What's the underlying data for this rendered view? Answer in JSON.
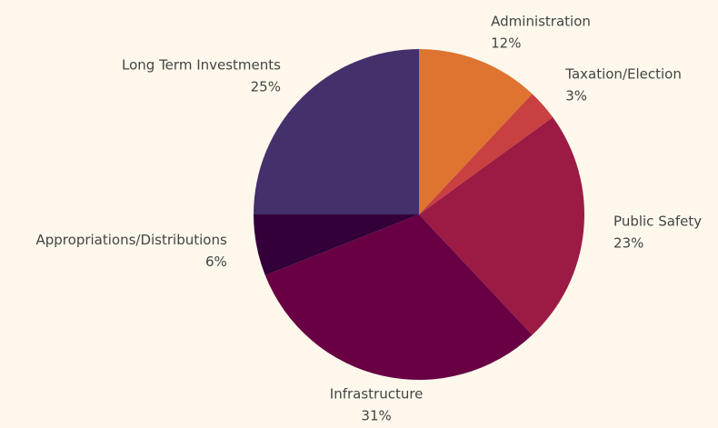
{
  "chart_data": {
    "type": "pie",
    "categories": [
      "Administration",
      "Taxation/Election",
      "Public Safety",
      "Infrastructure",
      "Appropriations/Distributions",
      "Long Term Investments"
    ],
    "values": [
      12,
      3,
      23,
      31,
      6,
      25
    ],
    "value_labels": [
      "12%",
      "3%",
      "23%",
      "31%",
      "6%",
      "25%"
    ],
    "colors": [
      "#de7430",
      "#c8403f",
      "#9b1b45",
      "#680043",
      "#33003a",
      "#44306a"
    ]
  }
}
